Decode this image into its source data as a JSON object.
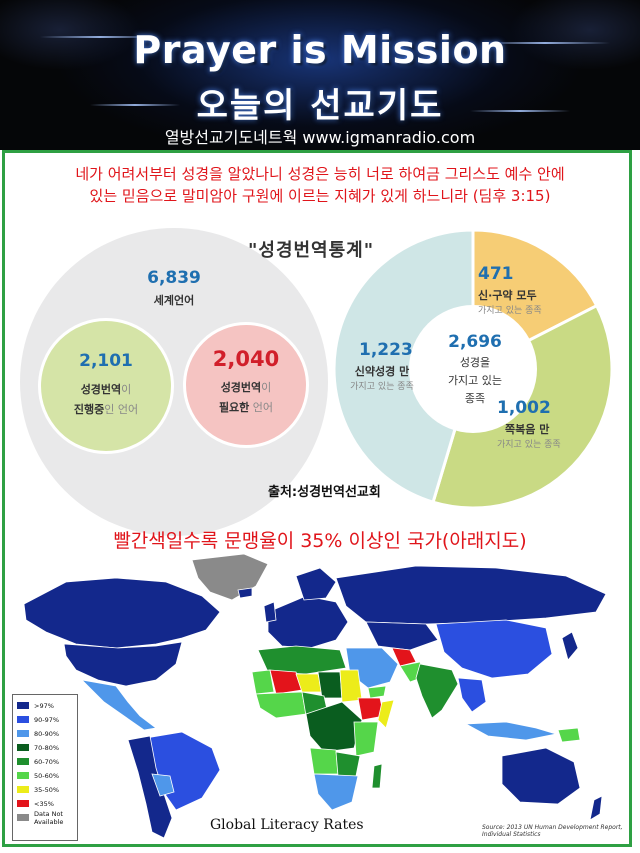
{
  "banner": {
    "title": "Prayer is Mission",
    "subtitle": "오늘의 선교기도",
    "site": "열방선교기도네트웍 www.igmanradio.com"
  },
  "verse": {
    "line1": "네가 어려서부터 성경을 알았나니 성경은 능히 너로 하여금 그리스도 예수 안에",
    "line2": "있는 믿음으로 말미암아 구원에 이르는 지혜가 있게 하느니라 (딤후 3:15)"
  },
  "stats": {
    "title": "\"성경번역통계\"",
    "world": {
      "number": "6,839",
      "label": "세계언어"
    },
    "in_progress": {
      "number": "2,101",
      "label_a": "성경번역",
      "label_b": "이",
      "label_c": "진행중",
      "label_d": "인 언어"
    },
    "needed": {
      "number": "2,040",
      "label_a": "성경번역",
      "label_b": "이",
      "label_c": "필요한",
      "label_d": " 언어"
    },
    "center": {
      "number": "2,696",
      "line1": "성경을",
      "line2": "가지고 있는",
      "line3": "종족"
    },
    "both": {
      "number": "471",
      "line1": "신·구약 모두",
      "line2": "가지고 있는 종족"
    },
    "nt_only": {
      "number": "1,223",
      "line1": "신약성경 만",
      "line2": "가지고 있는 종족"
    },
    "portion": {
      "number": "1,002",
      "line1": "쪽복음 만",
      "line2": "가지고 있는 종족"
    },
    "pie_values": [
      471,
      1002,
      1223
    ],
    "pie_colors": [
      "#f6cd75",
      "#c9da84",
      "#cfe6e6"
    ],
    "source": "출처:성경번역선교회"
  },
  "literacy": {
    "heading": "빨간색일수록 문맹율이 35% 이상인 국가(아래지도)",
    "legend": [
      {
        "label": ">97%",
        "color": "#13288c"
      },
      {
        "label": "90-97%",
        "color": "#2b4fe0"
      },
      {
        "label": "80-90%",
        "color": "#4f97ea"
      },
      {
        "label": "70-80%",
        "color": "#0a5d1f"
      },
      {
        "label": "60-70%",
        "color": "#1f8f2e"
      },
      {
        "label": "50-60%",
        "color": "#55d64a"
      },
      {
        "label": "35-50%",
        "color": "#ecec1a"
      },
      {
        "label": "<35%",
        "color": "#e3141b"
      },
      {
        "label": "Data Not Available",
        "color": "#8a8a8a"
      }
    ],
    "map_title": "Global Literacy Rates",
    "map_source_line1": "Source: 2013 UN Human Development Report,",
    "map_source_line2": "Individual Statistics"
  }
}
